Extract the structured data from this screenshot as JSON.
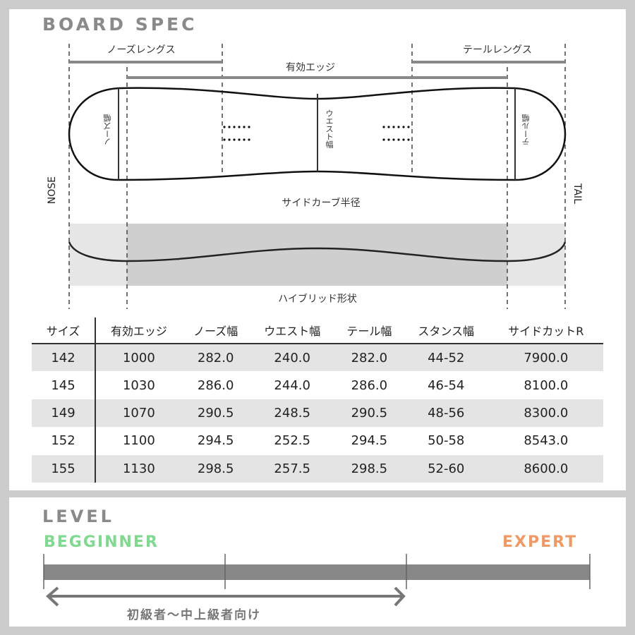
{
  "spec": {
    "title": "BOARD SPEC",
    "nose_length": "ノーズレングス",
    "tail_length": "テールレングス",
    "effective_edge": "有効エッジ",
    "nose_width": "ノーズ幅",
    "waist_width": "ウエスト幅",
    "tail_width": "テール幅",
    "nose": "NOSE",
    "tail": "TAIL",
    "sidecut": "サイドカーブ半径",
    "profile": "ハイブリッド形状"
  },
  "table": {
    "headers": [
      "サイズ",
      "有効エッジ",
      "ノーズ幅",
      "ウエスト幅",
      "テール幅",
      "スタンス幅",
      "サイドカットR"
    ],
    "rows": [
      [
        "142",
        "1000",
        "282.0",
        "240.0",
        "282.0",
        "44-52",
        "7900.0"
      ],
      [
        "145",
        "1030",
        "286.0",
        "244.0",
        "286.0",
        "46-54",
        "8100.0"
      ],
      [
        "149",
        "1070",
        "290.5",
        "248.5",
        "290.5",
        "48-56",
        "8300.0"
      ],
      [
        "152",
        "1100",
        "294.5",
        "252.5",
        "294.5",
        "50-58",
        "8543.0"
      ],
      [
        "155",
        "1130",
        "298.5",
        "257.5",
        "298.5",
        "52-60",
        "8600.0"
      ]
    ]
  },
  "level": {
    "title": "LEVEL",
    "beginner": "BEGGINNER",
    "expert": "EXPERT",
    "range": "初級者〜中上級者向け",
    "range_fraction": [
      0,
      0.667
    ],
    "beginner_color": "#7fd98f",
    "expert_color": "#ef9a66"
  }
}
